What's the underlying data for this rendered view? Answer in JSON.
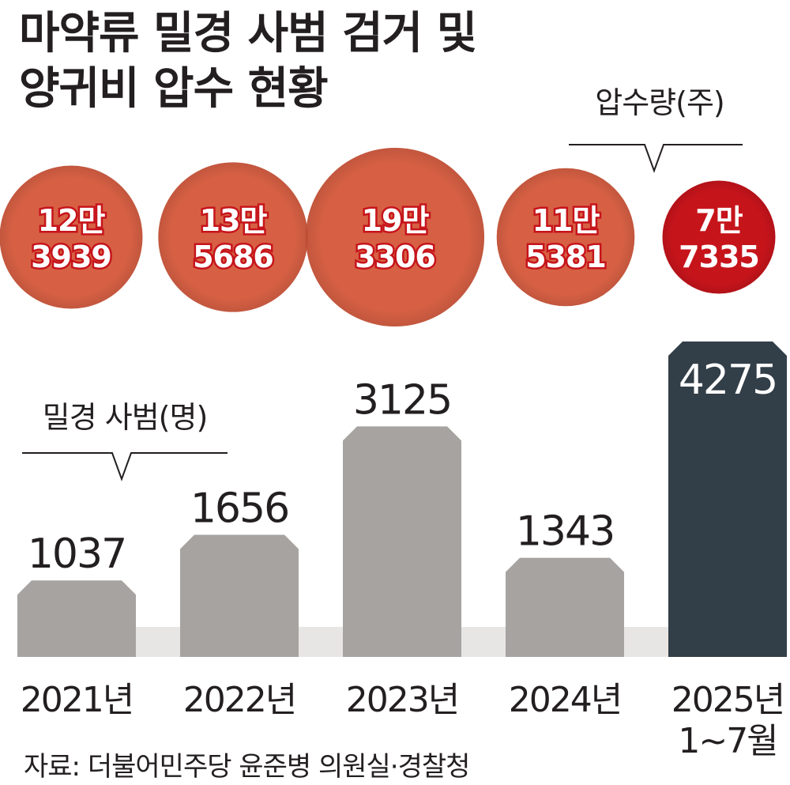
{
  "title_lines": [
    "마약류 밀경 사범 검거 및",
    "양귀비 압수 현황"
  ],
  "source": "자료: 더불어민주당 윤준병 의원실·경찰청",
  "colors": {
    "bubble": "#d45234",
    "bubble_latest": "#c6141b",
    "bar": "#a6a3a0",
    "bar_latest": "#323e48",
    "baseline": "#e8e6e4"
  },
  "chart_data": {
    "type": "bar",
    "categories": [
      [
        "2021년"
      ],
      [
        "2022년"
      ],
      [
        "2023년"
      ],
      [
        "2024년"
      ],
      [
        "2025년",
        "1~7월"
      ]
    ],
    "series": [
      {
        "name": "밀경 사범(명)",
        "values": [
          1037,
          1656,
          3125,
          1343,
          4275
        ],
        "labels": [
          "1037",
          "1656",
          "3125",
          "1343",
          "4275"
        ]
      },
      {
        "name": "압수량(주)",
        "values": [
          123939,
          135686,
          193306,
          115381,
          77335
        ],
        "labels": [
          [
            "12만",
            "3939"
          ],
          [
            "13만",
            "5686"
          ],
          [
            "19만",
            "3306"
          ],
          [
            "11만",
            "5381"
          ],
          [
            "7만",
            "7335"
          ]
        ]
      }
    ],
    "xlabel": "",
    "ylabel": ""
  }
}
